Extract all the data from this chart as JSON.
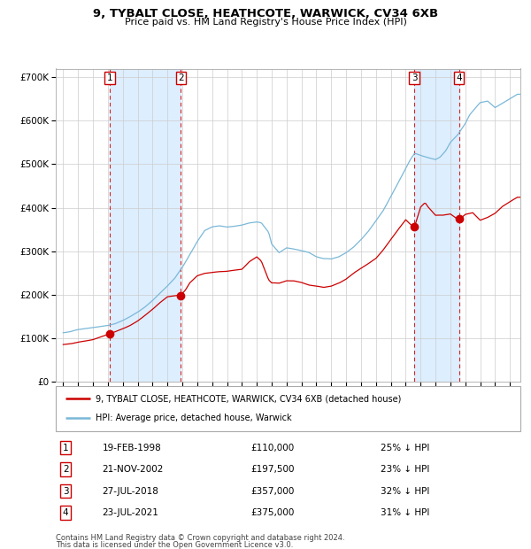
{
  "title1": "9, TYBALT CLOSE, HEATHCOTE, WARWICK, CV34 6XB",
  "title2": "Price paid vs. HM Land Registry's House Price Index (HPI)",
  "legend1": "9, TYBALT CLOSE, HEATHCOTE, WARWICK, CV34 6XB (detached house)",
  "legend2": "HPI: Average price, detached house, Warwick",
  "footer1": "Contains HM Land Registry data © Crown copyright and database right 2024.",
  "footer2": "This data is licensed under the Open Government Licence v3.0.",
  "sales": [
    {
      "num": 1,
      "date": "19-FEB-1998",
      "price": 110000,
      "pct": "25% ↓ HPI",
      "year": 1998.13
    },
    {
      "num": 2,
      "date": "21-NOV-2002",
      "price": 197500,
      "pct": "23% ↓ HPI",
      "year": 2002.9
    },
    {
      "num": 3,
      "date": "27-JUL-2018",
      "price": 357000,
      "pct": "32% ↓ HPI",
      "year": 2018.57
    },
    {
      "num": 4,
      "date": "23-JUL-2021",
      "price": 375000,
      "pct": "31% ↓ HPI",
      "year": 2021.57
    }
  ],
  "hpi_color": "#7ab8d8",
  "price_color": "#cc0000",
  "shade_color": "#ddeeff",
  "dashed_color": "#cc0000",
  "grid_color": "#cccccc",
  "bg_color": "#ffffff",
  "ylim": [
    0,
    720000
  ],
  "yticks": [
    0,
    100000,
    200000,
    300000,
    400000,
    500000,
    600000,
    700000
  ],
  "xlim_start": 1994.5,
  "xlim_end": 2025.7,
  "hpi_anchors_t": [
    1995.0,
    1995.5,
    1996.0,
    1996.5,
    1997.0,
    1997.5,
    1998.0,
    1998.5,
    1999.0,
    1999.5,
    2000.0,
    2000.5,
    2001.0,
    2001.5,
    2002.0,
    2002.5,
    2003.0,
    2003.5,
    2004.0,
    2004.5,
    2005.0,
    2005.5,
    2006.0,
    2006.5,
    2007.0,
    2007.5,
    2008.0,
    2008.3,
    2008.8,
    2009.0,
    2009.5,
    2010.0,
    2010.5,
    2011.0,
    2011.5,
    2012.0,
    2012.5,
    2013.0,
    2013.5,
    2014.0,
    2014.5,
    2015.0,
    2015.5,
    2016.0,
    2016.5,
    2017.0,
    2017.5,
    2018.0,
    2018.3,
    2018.6,
    2019.0,
    2019.5,
    2020.0,
    2020.3,
    2020.7,
    2021.0,
    2021.5,
    2022.0,
    2022.3,
    2022.5,
    2023.0,
    2023.5,
    2024.0,
    2024.5,
    2025.0,
    2025.5
  ],
  "hpi_anchors_v": [
    110000,
    112000,
    117000,
    121000,
    124000,
    127000,
    130000,
    135000,
    143000,
    152000,
    162000,
    174000,
    188000,
    205000,
    222000,
    240000,
    265000,
    295000,
    325000,
    350000,
    358000,
    360000,
    358000,
    360000,
    363000,
    368000,
    370000,
    368000,
    345000,
    318000,
    298000,
    308000,
    305000,
    302000,
    298000,
    288000,
    282000,
    280000,
    285000,
    295000,
    308000,
    325000,
    345000,
    368000,
    392000,
    425000,
    458000,
    490000,
    510000,
    525000,
    520000,
    515000,
    510000,
    515000,
    530000,
    548000,
    565000,
    590000,
    610000,
    618000,
    638000,
    642000,
    628000,
    638000,
    648000,
    658000
  ],
  "pp_anchors_t": [
    1995.0,
    1995.5,
    1996.0,
    1996.5,
    1997.0,
    1997.5,
    1998.13,
    1998.5,
    1999.0,
    1999.5,
    2000.0,
    2000.5,
    2001.0,
    2001.5,
    2002.0,
    2002.5,
    2002.9,
    2003.2,
    2003.5,
    2004.0,
    2004.5,
    2005.0,
    2005.5,
    2006.0,
    2006.5,
    2007.0,
    2007.5,
    2008.0,
    2008.3,
    2008.8,
    2009.0,
    2009.5,
    2010.0,
    2010.5,
    2011.0,
    2011.5,
    2012.0,
    2012.5,
    2013.0,
    2013.5,
    2014.0,
    2014.5,
    2015.0,
    2015.5,
    2016.0,
    2016.5,
    2017.0,
    2017.5,
    2018.0,
    2018.57,
    2019.0,
    2019.3,
    2019.5,
    2020.0,
    2020.5,
    2021.0,
    2021.57,
    2022.0,
    2022.5,
    2023.0,
    2023.5,
    2024.0,
    2024.5,
    2025.0,
    2025.5
  ],
  "pp_anchors_v": [
    82000,
    84000,
    88000,
    91000,
    95000,
    102000,
    110000,
    115000,
    122000,
    130000,
    140000,
    152000,
    165000,
    180000,
    193000,
    196000,
    197500,
    208000,
    225000,
    242000,
    248000,
    250000,
    252000,
    253000,
    255000,
    258000,
    275000,
    285000,
    275000,
    230000,
    223000,
    222000,
    228000,
    228000,
    225000,
    220000,
    218000,
    215000,
    218000,
    225000,
    235000,
    248000,
    260000,
    272000,
    285000,
    305000,
    328000,
    352000,
    375000,
    357000,
    405000,
    415000,
    405000,
    385000,
    385000,
    388000,
    375000,
    388000,
    392000,
    375000,
    382000,
    392000,
    408000,
    418000,
    428000
  ]
}
